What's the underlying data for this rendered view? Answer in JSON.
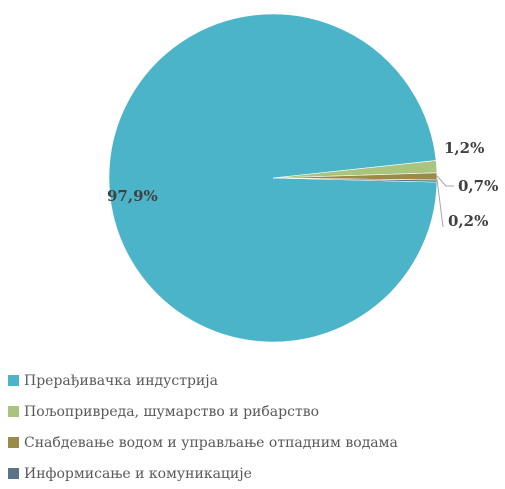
{
  "chart_data": {
    "type": "pie",
    "slices": [
      {
        "label": "Прерађивачка индустрија",
        "value": 97.9,
        "display": "97,9%",
        "color": "#4BB4C8"
      },
      {
        "label": "Пољопривреда, шумарство и рибарство",
        "value": 1.2,
        "display": "1,2%",
        "color": "#A9C47F"
      },
      {
        "label": "Снабдевање водом и управљање отпадним водама",
        "value": 0.7,
        "display": "0,7%",
        "color": "#9B8B48"
      },
      {
        "label": "Информисање и комуникације",
        "value": 0.2,
        "display": "0,2%",
        "color": "#5B7389"
      }
    ],
    "legend_position": "bottom"
  }
}
